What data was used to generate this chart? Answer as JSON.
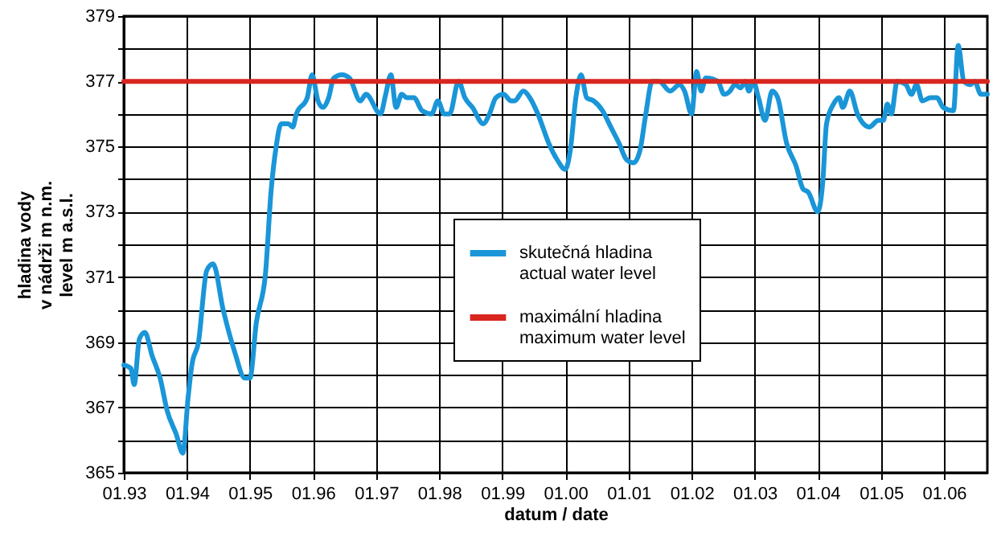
{
  "chart_data": {
    "type": "line",
    "xlabel": "datum / date",
    "ylabel": "hladina vody\nv nádrži m n.m.\nlevel m a.s.l.",
    "xlim": [
      "1993-01-01",
      "2006-09-09"
    ],
    "ylim": [
      365,
      379
    ],
    "xticks": [
      {
        "value": "1993-01",
        "label": "01.93"
      },
      {
        "value": "1994-01",
        "label": "01.94"
      },
      {
        "value": "1995-01",
        "label": "01.95"
      },
      {
        "value": "1996-01",
        "label": "01.96"
      },
      {
        "value": "1997-01",
        "label": "01.97"
      },
      {
        "value": "1998-01",
        "label": "01.98"
      },
      {
        "value": "1999-01",
        "label": "01.99"
      },
      {
        "value": "2000-01",
        "label": "01.00"
      },
      {
        "value": "2001-01",
        "label": "01.01"
      },
      {
        "value": "2002-01",
        "label": "01.02"
      },
      {
        "value": "2003-01",
        "label": "01.03"
      },
      {
        "value": "2004-01",
        "label": "01.04"
      },
      {
        "value": "2005-01",
        "label": "01.05"
      },
      {
        "value": "2006-01",
        "label": "01.06"
      }
    ],
    "yticks": [
      365,
      {
        "value": 366,
        "label": null
      },
      367,
      {
        "value": 368,
        "label": null
      },
      369,
      {
        "value": 370,
        "label": null
      },
      371,
      {
        "value": 372,
        "label": null
      },
      373,
      {
        "value": 374,
        "label": null
      },
      375,
      {
        "value": 376,
        "label": null
      },
      377,
      {
        "value": 378,
        "label": null
      },
      379
    ],
    "grid": true,
    "legend": "center",
    "line_style": "solid",
    "marker": "none",
    "series": [
      {
        "name": "skutečná hladina\nactual water level",
        "color": "#1a96d8",
        "x": [
          "1993-01-01",
          "1993-02-11",
          "1993-03-02",
          "1993-04-01",
          "1993-05-03",
          "1993-06-13",
          "1993-07-30",
          "1993-09-09",
          "1993-10-30",
          "1993-12-09",
          "1994-01-08",
          "1994-01-30",
          "1994-03-09",
          "1994-04-26",
          "1994-06-02",
          "1994-07-30",
          "1994-10-05",
          "1994-12-02",
          "1995-01-01",
          "1995-02-07",
          "1995-04-01",
          "1995-05-03",
          "1995-06-02",
          "1995-07-01",
          "1995-08-11",
          "1995-09-06",
          "1995-09-27",
          "1995-11-29",
          "1995-12-27",
          "1996-01-30",
          "1996-02-28",
          "1996-04-01",
          "1996-04-30",
          "1996-06-17",
          "1996-07-30",
          "1996-10-01",
          "1996-11-03",
          "1997-01-26",
          "1997-02-25",
          "1997-03-27",
          "1997-04-26",
          "1997-05-29",
          "1997-06-27",
          "1997-08-07",
          "1997-09-24",
          "1997-11-18",
          "1997-12-24",
          "1998-01-30",
          "1998-03-02",
          "1998-04-23",
          "1998-05-29",
          "1998-07-12",
          "1998-09-13",
          "1998-10-19",
          "1998-11-25",
          "1999-01-08",
          "1999-02-21",
          "1999-03-13",
          "1999-05-03",
          "1999-06-09",
          "1999-07-26",
          "1999-09-27",
          "1999-11-14",
          "2000-01-01",
          "2000-01-30",
          "2000-03-02",
          "2000-04-01",
          "2000-05-03",
          "2000-06-13",
          "2000-08-03",
          "2000-09-20",
          "2000-11-07",
          "2000-12-20",
          "2001-01-30",
          "2001-03-09",
          "2001-04-08",
          "2001-05-18",
          "2001-06-27",
          "2001-08-29",
          "2001-10-23",
          "2001-11-21",
          "2002-01-01",
          "2002-01-30",
          "2002-02-25",
          "2002-03-24",
          "2002-06-02",
          "2002-07-08",
          "2002-08-11",
          "2002-09-09",
          "2002-10-12",
          "2002-11-07",
          "2002-11-29",
          "2002-12-24",
          "2003-01-23",
          "2003-03-02",
          "2003-04-12",
          "2003-05-14",
          "2003-07-05",
          "2003-08-29",
          "2003-10-08",
          "2003-11-07",
          "2004-01-01",
          "2004-01-30",
          "2004-02-21",
          "2004-04-01",
          "2004-05-03",
          "2004-05-25",
          "2004-07-05",
          "2004-08-18",
          "2004-10-26",
          "2004-12-17",
          "2005-01-15",
          "2005-02-07",
          "2005-03-02",
          "2005-04-05",
          "2005-05-25",
          "2005-06-27",
          "2005-07-26",
          "2005-08-29",
          "2005-10-15",
          "2005-11-21",
          "2005-12-27",
          "2006-02-25",
          "2006-03-24",
          "2006-04-26",
          "2006-06-02",
          "2006-06-27",
          "2006-08-03",
          "2006-09-09"
        ],
        "values": [
          368.3,
          368.2,
          367.7,
          369.1,
          369.3,
          368.6,
          367.9,
          366.9,
          366.2,
          365.6,
          367.3,
          368.3,
          369.0,
          371.2,
          371.4,
          370.0,
          368.7,
          367.9,
          367.9,
          369.6,
          371.1,
          373.6,
          375.0,
          375.7,
          375.7,
          375.6,
          376.0,
          376.5,
          377.2,
          376.4,
          376.2,
          376.5,
          377.1,
          377.2,
          377.1,
          376.4,
          376.6,
          376.0,
          376.6,
          377.2,
          376.2,
          376.6,
          376.5,
          376.5,
          376.1,
          376.0,
          376.4,
          376.0,
          376.0,
          377.0,
          376.5,
          376.2,
          375.7,
          376.0,
          376.5,
          376.6,
          376.4,
          376.4,
          376.7,
          376.5,
          376.0,
          375.1,
          374.6,
          374.3,
          374.9,
          376.5,
          377.2,
          376.5,
          376.4,
          376.1,
          375.6,
          375.1,
          374.6,
          374.5,
          374.9,
          375.9,
          377.0,
          377.0,
          376.7,
          376.9,
          376.7,
          376.0,
          377.3,
          376.7,
          377.1,
          377.0,
          376.6,
          376.7,
          376.9,
          376.8,
          377.0,
          376.7,
          377.0,
          376.5,
          375.8,
          376.7,
          376.5,
          375.1,
          374.4,
          373.7,
          373.6,
          373.0,
          373.9,
          375.7,
          376.3,
          376.5,
          376.2,
          376.7,
          376.0,
          375.6,
          375.8,
          375.8,
          376.3,
          376.0,
          377.0,
          376.9,
          376.6,
          376.9,
          376.4,
          376.5,
          376.5,
          376.2,
          376.1,
          378.1,
          377.0,
          376.9,
          377.0,
          376.6,
          376.6
        ]
      },
      {
        "name": "maximální hladina\nmaximum water level",
        "color": "#d8261f",
        "x": [
          "1993-01-01",
          "2006-09-09"
        ],
        "values": [
          377,
          377
        ]
      }
    ]
  }
}
